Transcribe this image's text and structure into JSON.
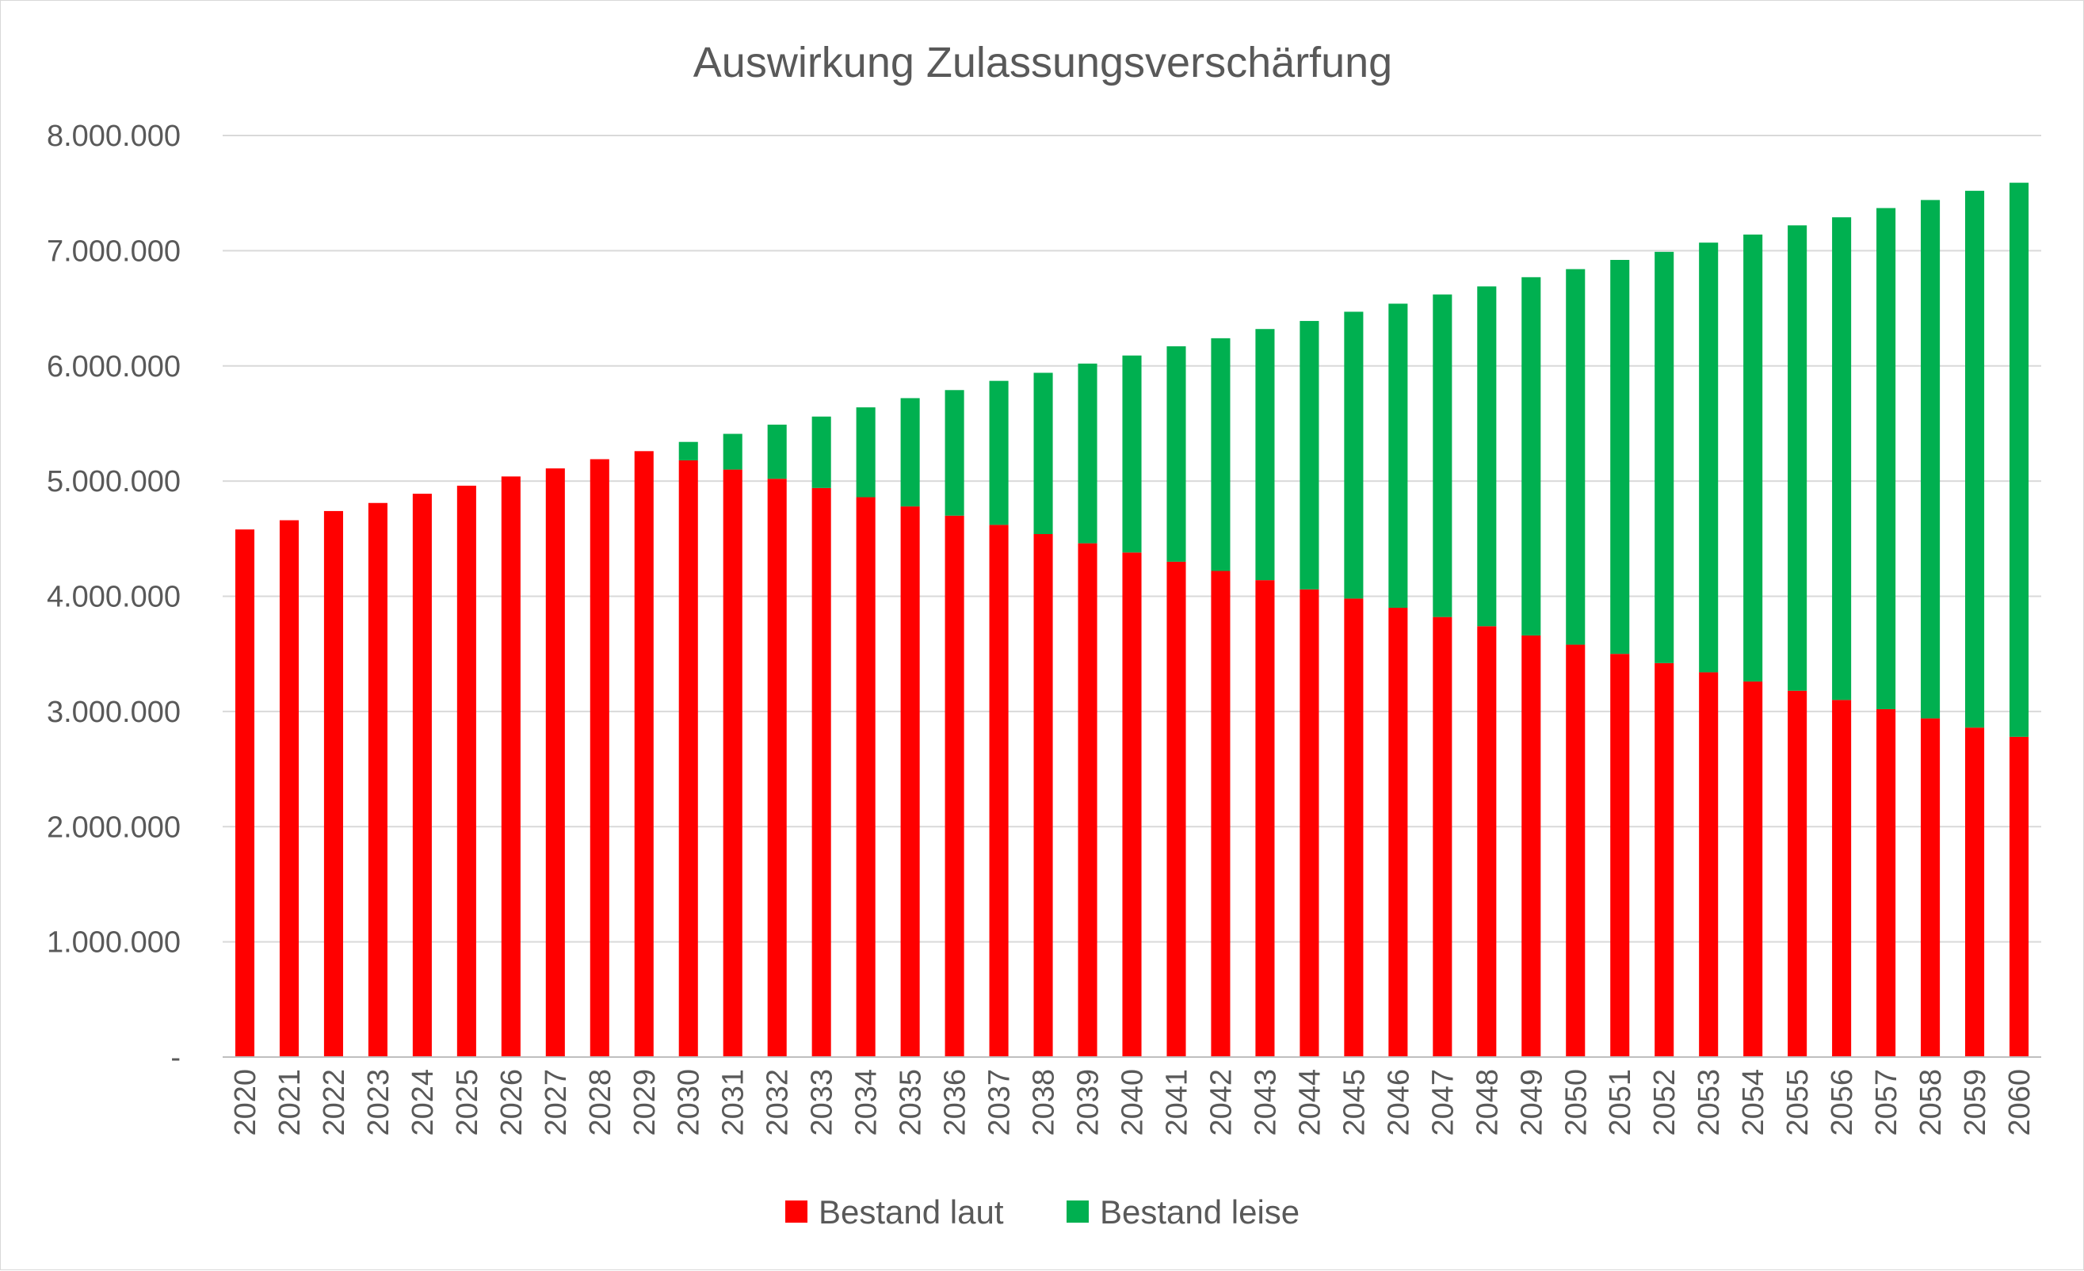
{
  "chart_data": {
    "type": "bar",
    "stacked": true,
    "title": "Auswirkung Zulassungsverschärfung",
    "xlabel": "",
    "ylabel": "",
    "ylim": [
      0,
      8000000
    ],
    "grid": true,
    "legend_position": "bottom",
    "yticks": [
      0,
      1000000,
      2000000,
      3000000,
      4000000,
      5000000,
      6000000,
      7000000,
      8000000
    ],
    "ytick_labels": [
      "-",
      "1.000.000",
      "2.000.000",
      "3.000.000",
      "4.000.000",
      "5.000.000",
      "6.000.000",
      "7.000.000",
      "8.000.000"
    ],
    "categories": [
      "2020",
      "2021",
      "2022",
      "2023",
      "2024",
      "2025",
      "2026",
      "2027",
      "2028",
      "2029",
      "2030",
      "2031",
      "2032",
      "2033",
      "2034",
      "2035",
      "2036",
      "2037",
      "2038",
      "2039",
      "2040",
      "2041",
      "2042",
      "2043",
      "2044",
      "2045",
      "2046",
      "2047",
      "2048",
      "2049",
      "2050",
      "2051",
      "2052",
      "2053",
      "2054",
      "2055",
      "2056",
      "2057",
      "2058",
      "2059",
      "2060"
    ],
    "series": [
      {
        "name": "Bestand laut",
        "color": "#ff0000",
        "values": [
          4580000,
          4660000,
          4740000,
          4810000,
          4890000,
          4960000,
          5040000,
          5110000,
          5190000,
          5260000,
          5180000,
          5100000,
          5020000,
          4940000,
          4860000,
          4780000,
          4700000,
          4620000,
          4540000,
          4460000,
          4380000,
          4300000,
          4220000,
          4140000,
          4060000,
          3980000,
          3900000,
          3820000,
          3740000,
          3660000,
          3580000,
          3500000,
          3420000,
          3340000,
          3260000,
          3180000,
          3100000,
          3020000,
          2940000,
          2860000,
          2780000
        ]
      },
      {
        "name": "Bestand leise",
        "color": "#00b050",
        "values": [
          0,
          0,
          0,
          0,
          0,
          0,
          0,
          0,
          0,
          0,
          160000,
          310000,
          470000,
          620000,
          780000,
          940000,
          1090000,
          1250000,
          1400000,
          1560000,
          1710000,
          1870000,
          2020000,
          2180000,
          2330000,
          2490000,
          2640000,
          2800000,
          2950000,
          3110000,
          3260000,
          3420000,
          3570000,
          3730000,
          3880000,
          4040000,
          4190000,
          4350000,
          4500000,
          4660000,
          4810000
        ]
      }
    ]
  }
}
